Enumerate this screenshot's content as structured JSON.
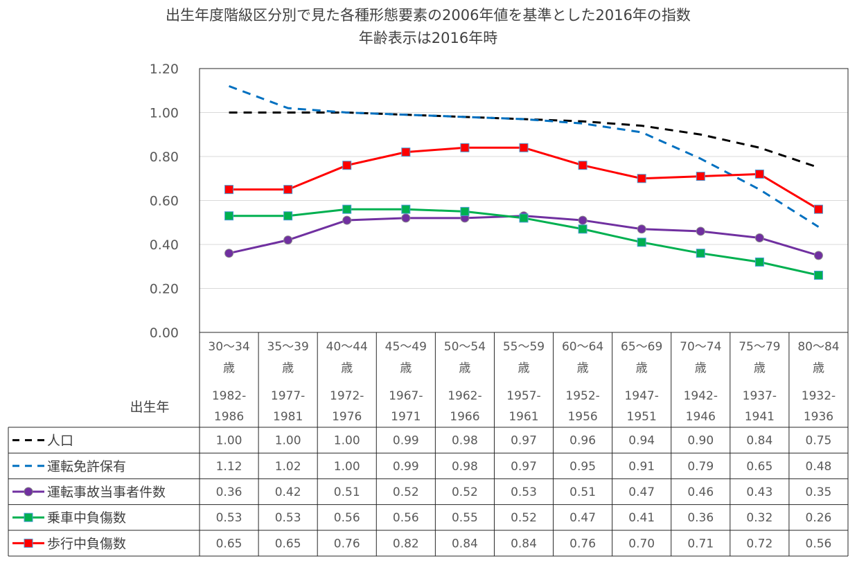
{
  "chart_data": {
    "type": "line",
    "title": "出生年度階級区分別で見た各種形態要素の2006年値を基準とした2016年の指数",
    "subtitle": "年齢表示は2016年時",
    "ylim": [
      0,
      1.2
    ],
    "y_ticks": [
      "0.00",
      "0.20",
      "0.40",
      "0.60",
      "0.80",
      "1.00",
      "1.20"
    ],
    "y_tick_values": [
      0,
      0.2,
      0.4,
      0.6,
      0.8,
      1.0,
      1.2
    ],
    "grid": true,
    "birth_year_label": "出生年",
    "categories": [
      {
        "age": "30～34",
        "unit": "歳",
        "years_a": "1982-",
        "years_b": "1986"
      },
      {
        "age": "35～39",
        "unit": "歳",
        "years_a": "1977-",
        "years_b": "1981"
      },
      {
        "age": "40～44",
        "unit": "歳",
        "years_a": "1972-",
        "years_b": "1976"
      },
      {
        "age": "45～49",
        "unit": "歳",
        "years_a": "1967-",
        "years_b": "1971"
      },
      {
        "age": "50～54",
        "unit": "歳",
        "years_a": "1962-",
        "years_b": "1966"
      },
      {
        "age": "55～59",
        "unit": "歳",
        "years_a": "1957-",
        "years_b": "1961"
      },
      {
        "age": "60～64",
        "unit": "歳",
        "years_a": "1952-",
        "years_b": "1956"
      },
      {
        "age": "65～69",
        "unit": "歳",
        "years_a": "1947-",
        "years_b": "1951"
      },
      {
        "age": "70～74",
        "unit": "歳",
        "years_a": "1942-",
        "years_b": "1946"
      },
      {
        "age": "75～79",
        "unit": "歳",
        "years_a": "1937-",
        "years_b": "1941"
      },
      {
        "age": "80～84",
        "unit": "歳",
        "years_a": "1932-",
        "years_b": "1936"
      }
    ],
    "series": [
      {
        "name": "人口",
        "color": "#000000",
        "style": "dash",
        "marker": "none",
        "values": [
          1.0,
          1.0,
          1.0,
          0.99,
          0.98,
          0.97,
          0.96,
          0.94,
          0.9,
          0.84,
          0.75
        ],
        "labels": [
          "1.00",
          "1.00",
          "1.00",
          "0.99",
          "0.98",
          "0.97",
          "0.96",
          "0.94",
          "0.90",
          "0.84",
          "0.75"
        ]
      },
      {
        "name": "運転免許保有",
        "color": "#0070C0",
        "style": "dash",
        "marker": "none",
        "values": [
          1.12,
          1.02,
          1.0,
          0.99,
          0.98,
          0.97,
          0.95,
          0.91,
          0.79,
          0.65,
          0.48
        ],
        "labels": [
          "1.12",
          "1.02",
          "1.00",
          "0.99",
          "0.98",
          "0.97",
          "0.95",
          "0.91",
          "0.79",
          "0.65",
          "0.48"
        ]
      },
      {
        "name": "運転事故当事者件数",
        "color": "#7030A0",
        "style": "solid",
        "marker": "circle",
        "values": [
          0.36,
          0.42,
          0.51,
          0.52,
          0.52,
          0.53,
          0.51,
          0.47,
          0.46,
          0.43,
          0.35
        ],
        "labels": [
          "0.36",
          "0.42",
          "0.51",
          "0.52",
          "0.52",
          "0.53",
          "0.51",
          "0.47",
          "0.46",
          "0.43",
          "0.35"
        ]
      },
      {
        "name": "乗車中負傷数",
        "color": "#00B050",
        "style": "solid",
        "marker": "square",
        "values": [
          0.53,
          0.53,
          0.56,
          0.56,
          0.55,
          0.52,
          0.47,
          0.41,
          0.36,
          0.32,
          0.26
        ],
        "labels": [
          "0.53",
          "0.53",
          "0.56",
          "0.56",
          "0.55",
          "0.52",
          "0.47",
          "0.41",
          "0.36",
          "0.32",
          "0.26"
        ]
      },
      {
        "name": "歩行中負傷数",
        "color": "#FF0000",
        "style": "solid",
        "marker": "square",
        "values": [
          0.65,
          0.65,
          0.76,
          0.82,
          0.84,
          0.84,
          0.76,
          0.7,
          0.71,
          0.72,
          0.56
        ],
        "labels": [
          "0.65",
          "0.65",
          "0.76",
          "0.82",
          "0.84",
          "0.84",
          "0.76",
          "0.70",
          "0.71",
          "0.72",
          "0.56"
        ]
      }
    ]
  }
}
